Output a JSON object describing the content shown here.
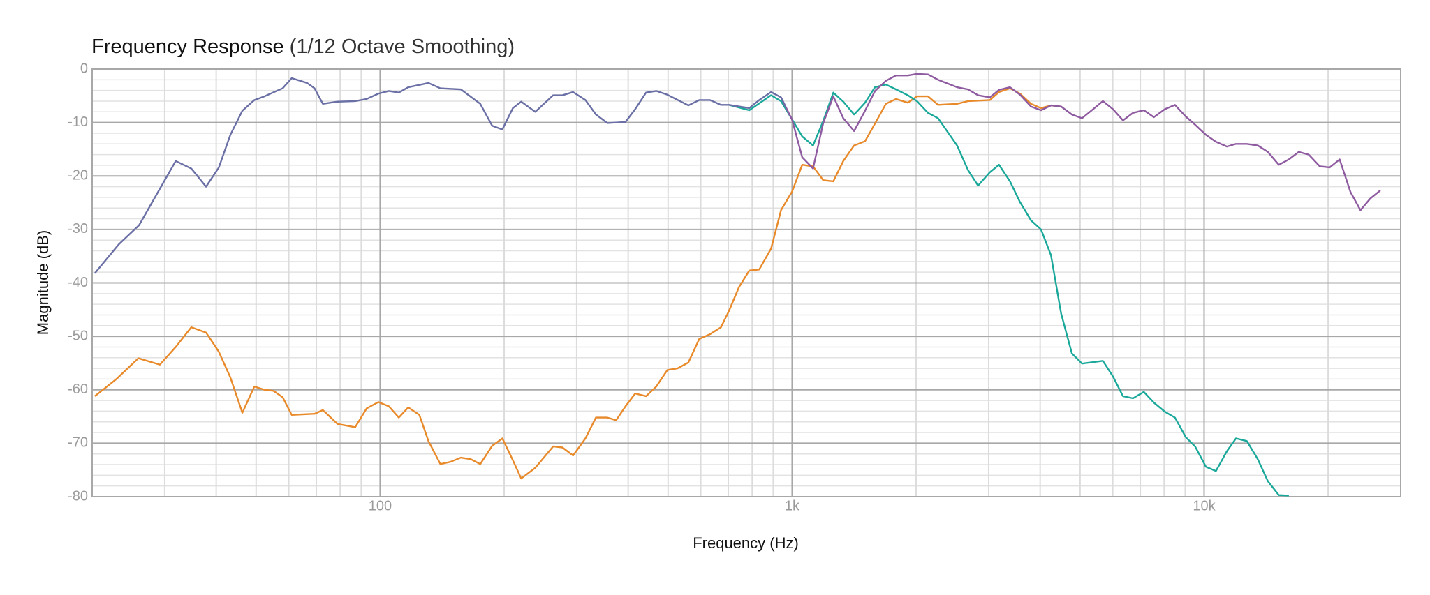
{
  "chart_data": {
    "type": "line",
    "title": "Frequency Response",
    "subtitle": "(1/12 Octave Smoothing)",
    "xlabel": "Frequency (Hz)",
    "ylabel": "Magnitude (dB)",
    "log_x": true,
    "grid": true,
    "xlim": [
      20,
      30000
    ],
    "ylim": [
      -80,
      0
    ],
    "xticks": [
      {
        "value": 100,
        "label": "100"
      },
      {
        "value": 1000,
        "label": "1k"
      },
      {
        "value": 10000,
        "label": "10k"
      }
    ],
    "xminor": [
      20,
      30,
      40,
      50,
      60,
      70,
      80,
      90,
      200,
      300,
      400,
      500,
      600,
      700,
      800,
      900,
      2000,
      3000,
      4000,
      5000,
      6000,
      7000,
      8000,
      9000,
      20000
    ],
    "yticks": [
      0,
      -10,
      -20,
      -30,
      -40,
      -50,
      -60,
      -70,
      -80
    ],
    "yminor": [
      -2,
      -4,
      -6,
      -8,
      -12,
      -14,
      -16,
      -18,
      -22,
      -24,
      -26,
      -28,
      -32,
      -34,
      -36,
      -38,
      -42,
      -44,
      -46,
      -48,
      -52,
      -54,
      -56,
      -58,
      -62,
      -64,
      -66,
      -68,
      -72,
      -74,
      -76,
      -78
    ],
    "series": [
      {
        "color": "#e8892a",
        "x": [
          20.3,
          22.9,
          25.9,
          29.2,
          31.9,
          34.8,
          37.8,
          40.6,
          43.3,
          46.3,
          49.5,
          52.4,
          55.1,
          58,
          61,
          69.3,
          72.6,
          78.8,
          87,
          92.7,
          99,
          105,
          111,
          117,
          124.5,
          131,
          140,
          148,
          157,
          166,
          175,
          187,
          198,
          210,
          220,
          238,
          263,
          277,
          294,
          315,
          334,
          356,
          374,
          394,
          416,
          442,
          468,
          498,
          527,
          560,
          595,
          632,
          672,
          703,
          743,
          787,
          832,
          889,
          940,
          1000,
          1058,
          1124,
          1190,
          1259,
          1331,
          1414,
          1503,
          1589,
          1689,
          1787,
          1909,
          2009,
          2137,
          2261,
          2514,
          2673,
          3020,
          3178,
          3379,
          3574,
          3800,
          4019,
          4249,
          4496
        ],
        "values": [
          -61.2,
          -58,
          -54.1,
          -55.3,
          -52,
          -48.3,
          -49.3,
          -52.9,
          -57.7,
          -64.3,
          -59.4,
          -60,
          -60.2,
          -61.4,
          -64.7,
          -64.5,
          -63.8,
          -66.4,
          -67,
          -63.5,
          -62.3,
          -63.1,
          -65.2,
          -63.3,
          -64.7,
          -69.6,
          -73.9,
          -73.5,
          -72.7,
          -73,
          -73.9,
          -70.5,
          -69.1,
          -73.2,
          -76.6,
          -74.6,
          -70.6,
          -70.8,
          -72.3,
          -69.1,
          -65.2,
          -65.2,
          -65.7,
          -63.1,
          -60.7,
          -61.2,
          -59.4,
          -56.3,
          -56,
          -54.9,
          -50.5,
          -49.6,
          -48.3,
          -45.2,
          -40.8,
          -37.7,
          -37.5,
          -33.6,
          -26.4,
          -22.9,
          -17.9,
          -18.2,
          -20.8,
          -21,
          -17.2,
          -14.3,
          -13.5,
          -10.2,
          -6.5,
          -5.6,
          -6.3,
          -5.1,
          -5.1,
          -6.7,
          -6.5,
          -6,
          -5.8,
          -4.3,
          -3.6,
          -4.6,
          -6.5,
          -7.3,
          -6.8,
          -7
        ]
      },
      {
        "color": "#1aa89a",
        "x": [
          703,
          787,
          889,
          940,
          1005,
          1058,
          1124,
          1190,
          1259,
          1331,
          1414,
          1503,
          1589,
          1689,
          1787,
          1909,
          2009,
          2137,
          2261,
          2514,
          2673,
          2827,
          3020,
          3178,
          3379,
          3574,
          3800,
          4019,
          4249,
          4496,
          4776,
          5054,
          5680,
          6007,
          6355,
          6719,
          7140,
          7553,
          8030,
          8495,
          9030,
          9508,
          10100,
          10685,
          11358,
          11951,
          12700,
          13500,
          14280,
          15180,
          16060
        ],
        "values": [
          -6.7,
          -7.7,
          -4.9,
          -6,
          -9.7,
          -12.6,
          -14.3,
          -9.7,
          -4.4,
          -6.1,
          -8.5,
          -6.3,
          -3.4,
          -2.9,
          -3.8,
          -4.9,
          -6,
          -8.2,
          -9.2,
          -14.3,
          -18.9,
          -21.8,
          -19.3,
          -17.9,
          -21,
          -24.9,
          -28.3,
          -30,
          -34.8,
          -45.7,
          -53.2,
          -55.1,
          -54.6,
          -57.5,
          -61.2,
          -61.6,
          -60.4,
          -62.4,
          -64.1,
          -65.2,
          -68.9,
          -70.6,
          -74.4,
          -75.2,
          -71.5,
          -69.1,
          -69.6,
          -73,
          -77.1,
          -79.7,
          -79.8
        ]
      },
      {
        "color": "#8e5aa0",
        "x": [
          940,
          1000,
          1058,
          1124,
          1190,
          1259,
          1331,
          1414,
          1503,
          1589,
          1689,
          1787,
          1909,
          2009,
          2137,
          2261,
          2514,
          2673,
          2827,
          3020,
          3178,
          3379,
          3574,
          3800,
          4019,
          4249,
          4496,
          4776,
          5054,
          5340,
          5680,
          6007,
          6355,
          6719,
          7140,
          7553,
          8030,
          8495,
          9030,
          9508,
          10100,
          10685,
          11358,
          11951,
          12700,
          13500,
          14280,
          15180,
          16060,
          16970,
          17940,
          19090,
          20180,
          21330,
          22660,
          23960,
          25330,
          26780
        ],
        "values": [
          -5.3,
          -9.5,
          -16.5,
          -18.6,
          -10.1,
          -5.1,
          -9.2,
          -11.6,
          -7.8,
          -4.1,
          -2.2,
          -1.2,
          -1.2,
          -0.9,
          -1,
          -2,
          -3.4,
          -3.8,
          -4.9,
          -5.3,
          -3.9,
          -3.4,
          -4.8,
          -7,
          -7.7,
          -6.8,
          -7,
          -8.5,
          -9.2,
          -7.7,
          -6,
          -7.5,
          -9.6,
          -8.2,
          -7.7,
          -9,
          -7.5,
          -6.7,
          -8.9,
          -10.4,
          -12.3,
          -13.6,
          -14.5,
          -14,
          -14,
          -14.3,
          -15.5,
          -17.9,
          -16.9,
          -15.5,
          -16,
          -18.2,
          -18.4,
          -16.9,
          -23,
          -26.4,
          -24.2,
          -22.7
        ]
      },
      {
        "color": "#6a6fa5",
        "x": [
          20.3,
          23.2,
          26,
          31.9,
          34.8,
          37.8,
          40.6,
          43.3,
          46.3,
          49.5,
          52.4,
          58,
          61,
          66.5,
          69.3,
          72.6,
          78.8,
          87,
          92.7,
          99,
          105,
          111,
          117,
          131,
          140,
          157,
          175,
          187,
          198,
          210,
          220,
          238,
          263,
          277,
          294,
          315,
          334,
          356,
          394,
          416,
          442,
          468,
          498,
          560,
          595,
          632,
          672,
          703,
          787,
          832,
          889,
          940,
          966
        ],
        "values": [
          -38.2,
          -32.8,
          -29.2,
          -17.2,
          -18.6,
          -22,
          -18.4,
          -12.3,
          -7.8,
          -5.8,
          -5.1,
          -3.6,
          -1.7,
          -2.6,
          -3.6,
          -6.5,
          -6.1,
          -6,
          -5.6,
          -4.6,
          -4.1,
          -4.4,
          -3.4,
          -2.6,
          -3.6,
          -3.8,
          -6.5,
          -10.6,
          -11.3,
          -7.3,
          -6.1,
          -8,
          -4.9,
          -4.9,
          -4.3,
          -5.8,
          -8.5,
          -10.1,
          -9.9,
          -7.5,
          -4.4,
          -4.1,
          -4.8,
          -6.8,
          -5.8,
          -5.8,
          -6.7,
          -6.7,
          -7.3,
          -5.8,
          -4.3,
          -5.3,
          -7.2
        ]
      }
    ]
  }
}
